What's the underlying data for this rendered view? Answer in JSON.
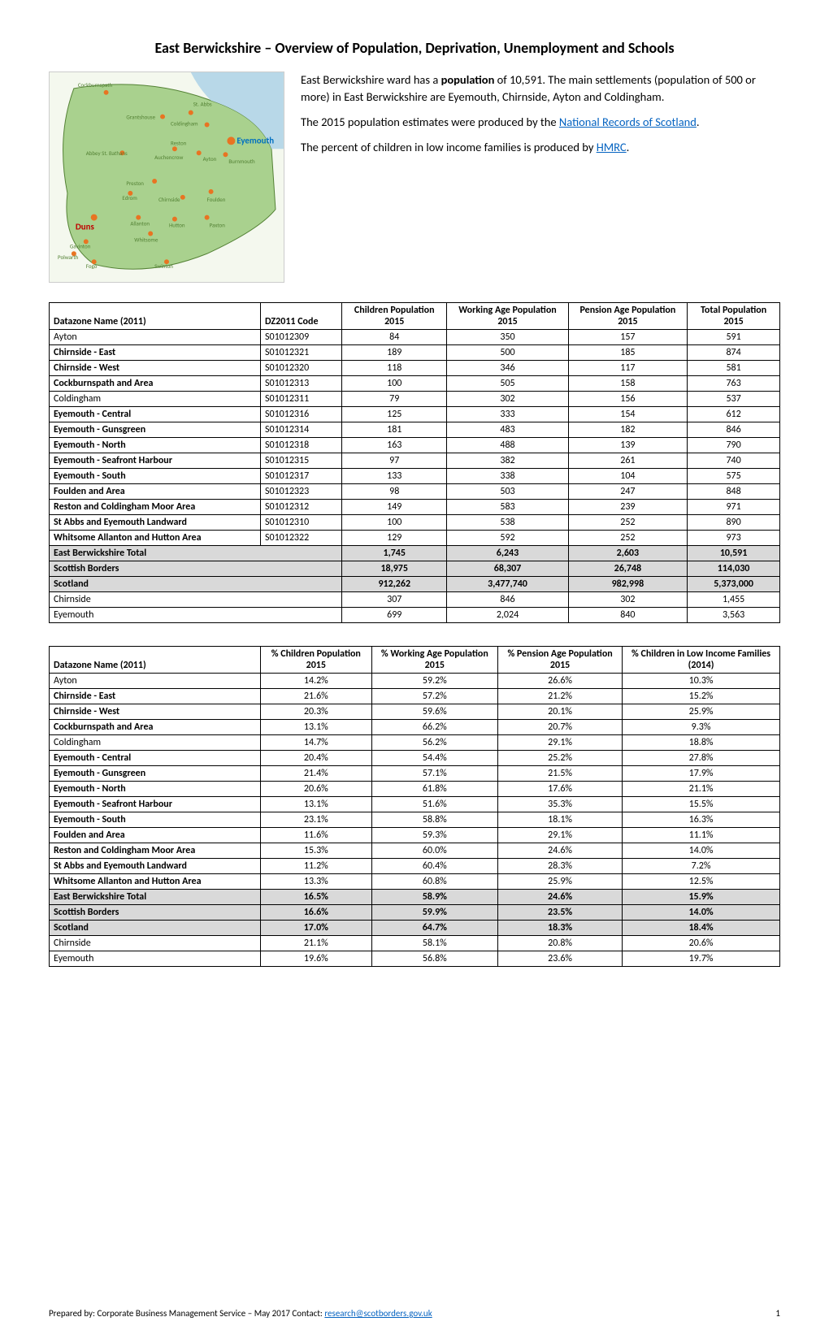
{
  "title": "East Berwickshire – Overview of Population, Deprivation, Unemployment and Schools",
  "intro": {
    "p1_a": "East Berwickshire ward has a ",
    "p1_bold": "population",
    "p1_b": " of 10,591. The main settlements (population of 500 or more) in East Berwickshire are Eyemouth, Chirnside, Ayton and Coldingham.",
    "p2_a": "The 2015 population estimates were produced by the ",
    "p2_link": "National Records of Scotland",
    "p2_b": ".",
    "p3_a": "The percent of children in low income families is produced by ",
    "p3_link": "HMRC",
    "p3_b": "."
  },
  "map": {
    "background": "#f0f5e8",
    "water": "#b8d8e8",
    "labels": [
      "Cockburnspath",
      "St. Abbs",
      "Coldingham",
      "Grantshouse",
      "Eyemouth",
      "Abbey St. Bathans",
      "Reston",
      "Ayton",
      "Burnmouth",
      "Auchencrow",
      "Preston",
      "Chirnside",
      "Foulden",
      "Edrom",
      "Allanton",
      "Duns",
      "Hutton",
      "Paxton",
      "Gavinton",
      "Whitsome",
      "Polwarth",
      "Fogo",
      "Swinton"
    ],
    "eyemouth_color": "#0070c0",
    "duns_color": "#c00000",
    "dot_color": "#e87422"
  },
  "table1": {
    "headers": {
      "c1": "Datazone Name (2011)",
      "c2": "DZ2011 Code",
      "c3": "Children Population 2015",
      "c4": "Working Age Population 2015",
      "c5": "Pension Age Population 2015",
      "c6": "Total Population 2015"
    },
    "rows": [
      {
        "name": "Ayton",
        "code": "S01012309",
        "children": "84",
        "working": "350",
        "pension": "157",
        "total": "591",
        "bold": false
      },
      {
        "name": "Chirnside - East",
        "code": "S01012321",
        "children": "189",
        "working": "500",
        "pension": "185",
        "total": "874",
        "bold": true
      },
      {
        "name": "Chirnside - West",
        "code": "S01012320",
        "children": "118",
        "working": "346",
        "pension": "117",
        "total": "581",
        "bold": true
      },
      {
        "name": "Cockburnspath and Area",
        "code": "S01012313",
        "children": "100",
        "working": "505",
        "pension": "158",
        "total": "763",
        "bold": true
      },
      {
        "name": "Coldingham",
        "code": "S01012311",
        "children": "79",
        "working": "302",
        "pension": "156",
        "total": "537",
        "bold": false
      },
      {
        "name": "Eyemouth - Central",
        "code": "S01012316",
        "children": "125",
        "working": "333",
        "pension": "154",
        "total": "612",
        "bold": true
      },
      {
        "name": "Eyemouth - Gunsgreen",
        "code": "S01012314",
        "children": "181",
        "working": "483",
        "pension": "182",
        "total": "846",
        "bold": true
      },
      {
        "name": "Eyemouth - North",
        "code": "S01012318",
        "children": "163",
        "working": "488",
        "pension": "139",
        "total": "790",
        "bold": true
      },
      {
        "name": "Eyemouth - Seafront Harbour",
        "code": "S01012315",
        "children": "97",
        "working": "382",
        "pension": "261",
        "total": "740",
        "bold": true
      },
      {
        "name": "Eyemouth - South",
        "code": "S01012317",
        "children": "133",
        "working": "338",
        "pension": "104",
        "total": "575",
        "bold": true
      },
      {
        "name": "Foulden and Area",
        "code": "S01012323",
        "children": "98",
        "working": "503",
        "pension": "247",
        "total": "848",
        "bold": true
      },
      {
        "name": "Reston and Coldingham Moor Area",
        "code": "S01012312",
        "children": "149",
        "working": "583",
        "pension": "239",
        "total": "971",
        "bold": true
      },
      {
        "name": "St Abbs and Eyemouth Landward",
        "code": "S01012310",
        "children": "100",
        "working": "538",
        "pension": "252",
        "total": "890",
        "bold": true
      },
      {
        "name": "Whitsome Allanton and Hutton Area",
        "code": "S01012322",
        "children": "129",
        "working": "592",
        "pension": "252",
        "total": "973",
        "bold": true
      }
    ],
    "totals": [
      {
        "name": "East Berwickshire Total",
        "children": "1,745",
        "working": "6,243",
        "pension": "2,603",
        "total": "10,591",
        "highlight": true
      },
      {
        "name": "Scottish Borders",
        "children": "18,975",
        "working": "68,307",
        "pension": "26,748",
        "total": "114,030",
        "highlight": true
      },
      {
        "name": "Scotland",
        "children": "912,262",
        "working": "3,477,740",
        "pension": "982,998",
        "total": "5,373,000",
        "highlight": true
      }
    ],
    "extras": [
      {
        "name": "Chirnside",
        "children": "307",
        "working": "846",
        "pension": "302",
        "total": "1,455"
      },
      {
        "name": "Eyemouth",
        "children": "699",
        "working": "2,024",
        "pension": "840",
        "total": "3,563"
      }
    ]
  },
  "table2": {
    "headers": {
      "c1": "Datazone Name (2011)",
      "c2": "% Children Population 2015",
      "c3": "% Working Age Population 2015",
      "c4": "% Pension Age Population 2015",
      "c5": "% Children in Low Income Families (2014)"
    },
    "rows": [
      {
        "name": "Ayton",
        "c": "14.2%",
        "w": "59.2%",
        "p": "26.6%",
        "li": "10.3%",
        "bold": false
      },
      {
        "name": "Chirnside - East",
        "c": "21.6%",
        "w": "57.2%",
        "p": "21.2%",
        "li": "15.2%",
        "bold": true
      },
      {
        "name": "Chirnside - West",
        "c": "20.3%",
        "w": "59.6%",
        "p": "20.1%",
        "li": "25.9%",
        "bold": true
      },
      {
        "name": "Cockburnspath and Area",
        "c": "13.1%",
        "w": "66.2%",
        "p": "20.7%",
        "li": "9.3%",
        "bold": true
      },
      {
        "name": "Coldingham",
        "c": "14.7%",
        "w": "56.2%",
        "p": "29.1%",
        "li": "18.8%",
        "bold": false
      },
      {
        "name": "Eyemouth - Central",
        "c": "20.4%",
        "w": "54.4%",
        "p": "25.2%",
        "li": "27.8%",
        "bold": true
      },
      {
        "name": "Eyemouth - Gunsgreen",
        "c": "21.4%",
        "w": "57.1%",
        "p": "21.5%",
        "li": "17.9%",
        "bold": true
      },
      {
        "name": "Eyemouth - North",
        "c": "20.6%",
        "w": "61.8%",
        "p": "17.6%",
        "li": "21.1%",
        "bold": true
      },
      {
        "name": "Eyemouth - Seafront Harbour",
        "c": "13.1%",
        "w": "51.6%",
        "p": "35.3%",
        "li": "15.5%",
        "bold": true
      },
      {
        "name": "Eyemouth - South",
        "c": "23.1%",
        "w": "58.8%",
        "p": "18.1%",
        "li": "16.3%",
        "bold": true
      },
      {
        "name": "Foulden and Area",
        "c": "11.6%",
        "w": "59.3%",
        "p": "29.1%",
        "li": "11.1%",
        "bold": true
      },
      {
        "name": "Reston and Coldingham Moor Area",
        "c": "15.3%",
        "w": "60.0%",
        "p": "24.6%",
        "li": "14.0%",
        "bold": true
      },
      {
        "name": "St Abbs and Eyemouth Landward",
        "c": "11.2%",
        "w": "60.4%",
        "p": "28.3%",
        "li": "7.2%",
        "bold": true
      },
      {
        "name": "Whitsome Allanton and Hutton Area",
        "c": "13.3%",
        "w": "60.8%",
        "p": "25.9%",
        "li": "12.5%",
        "bold": true
      }
    ],
    "totals": [
      {
        "name": "East Berwickshire Total",
        "c": "16.5%",
        "w": "58.9%",
        "p": "24.6%",
        "li": "15.9%"
      },
      {
        "name": "Scottish Borders",
        "c": "16.6%",
        "w": "59.9%",
        "p": "23.5%",
        "li": "14.0%"
      },
      {
        "name": "Scotland",
        "c": "17.0%",
        "w": "64.7%",
        "p": "18.3%",
        "li": "18.4%"
      }
    ],
    "extras": [
      {
        "name": "Chirnside",
        "c": "21.1%",
        "w": "58.1%",
        "p": "20.8%",
        "li": "20.6%"
      },
      {
        "name": "Eyemouth",
        "c": "19.6%",
        "w": "56.8%",
        "p": "23.6%",
        "li": "19.7%"
      }
    ]
  },
  "footer": {
    "prefix": "Prepared by: Corporate Business Management Service – May 2017 Contact: ",
    "email": "research@scotborders.gov.uk",
    "page": "1"
  },
  "colors": {
    "highlight_bg": "#d9d9d9",
    "link": "#0563c1",
    "border": "#000000"
  }
}
